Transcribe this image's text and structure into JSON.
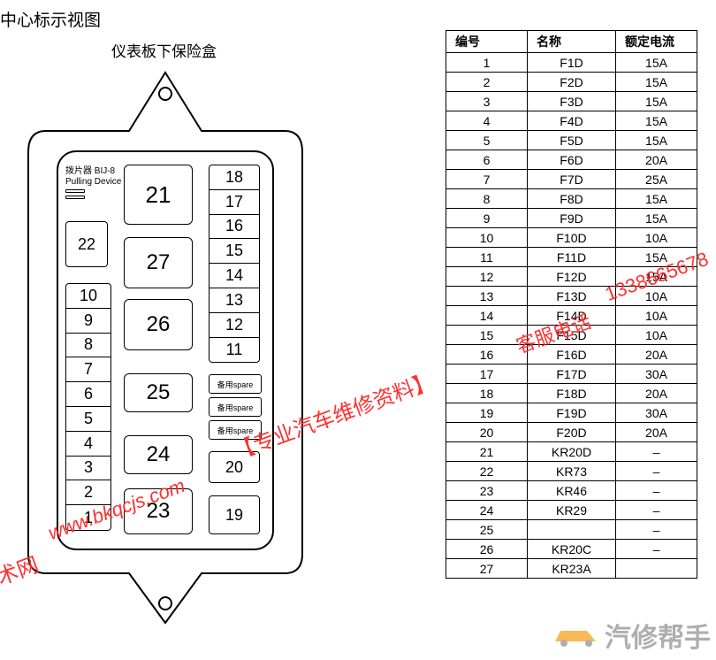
{
  "title": "中心标示视图",
  "subtitle": "仪表板下保险盒",
  "pulling_device": {
    "line1": "拨片器 BIJ-8",
    "line2": "Pulling Device"
  },
  "fusebox": {
    "left_stack_top_to_bottom": [
      "10",
      "9",
      "8",
      "7",
      "6",
      "5",
      "4",
      "3",
      "2",
      "1"
    ],
    "right_stack_top_to_bottom": [
      "18",
      "17",
      "16",
      "15",
      "14",
      "13",
      "12",
      "11"
    ],
    "relays": {
      "r21": "21",
      "r22": "22",
      "r27": "27",
      "r26": "26",
      "r25": "25",
      "r24": "24",
      "r23": "23",
      "r20": "20",
      "r19": "19"
    },
    "spare_label": "备用spare"
  },
  "table": {
    "headers": {
      "id": "编号",
      "name": "名称",
      "current": "额定电流"
    },
    "rows": [
      {
        "id": "1",
        "name": "F1D",
        "cur": "15A"
      },
      {
        "id": "2",
        "name": "F2D",
        "cur": "15A"
      },
      {
        "id": "3",
        "name": "F3D",
        "cur": "15A"
      },
      {
        "id": "4",
        "name": "F4D",
        "cur": "15A"
      },
      {
        "id": "5",
        "name": "F5D",
        "cur": "15A"
      },
      {
        "id": "6",
        "name": "F6D",
        "cur": "20A"
      },
      {
        "id": "7",
        "name": "F7D",
        "cur": "25A"
      },
      {
        "id": "8",
        "name": "F8D",
        "cur": "15A"
      },
      {
        "id": "9",
        "name": "F9D",
        "cur": "15A"
      },
      {
        "id": "10",
        "name": "F10D",
        "cur": "10A"
      },
      {
        "id": "11",
        "name": "F11D",
        "cur": "15A"
      },
      {
        "id": "12",
        "name": "F12D",
        "cur": "15A"
      },
      {
        "id": "13",
        "name": "F13D",
        "cur": "10A"
      },
      {
        "id": "14",
        "name": "F14D",
        "cur": "10A"
      },
      {
        "id": "15",
        "name": "F15D",
        "cur": "10A"
      },
      {
        "id": "16",
        "name": "F16D",
        "cur": "20A"
      },
      {
        "id": "17",
        "name": "F17D",
        "cur": "30A"
      },
      {
        "id": "18",
        "name": "F18D",
        "cur": "20A"
      },
      {
        "id": "19",
        "name": "F19D",
        "cur": "30A"
      },
      {
        "id": "20",
        "name": "F20D",
        "cur": "20A"
      },
      {
        "id": "21",
        "name": "KR20D",
        "cur": "–"
      },
      {
        "id": "22",
        "name": "KR73",
        "cur": "–"
      },
      {
        "id": "23",
        "name": "KR46",
        "cur": "–"
      },
      {
        "id": "24",
        "name": "KR29",
        "cur": "–"
      },
      {
        "id": "25",
        "name": "",
        "cur": "–"
      },
      {
        "id": "26",
        "name": "KR20C",
        "cur": "–"
      },
      {
        "id": "27",
        "name": "KR23A",
        "cur": ""
      }
    ]
  },
  "watermarks": {
    "w1": "技术网",
    "w2": "www.bkqcjs.com",
    "w3": "【专业汽车维修资料】",
    "w4": "客服电话",
    "w5": "1338665678",
    "logo_text": "汽修帮手"
  },
  "colors": {
    "stroke": "#000000",
    "background": "#ffffff",
    "watermark_red": "#ff3030",
    "logo_grey": "#a6a6a6",
    "logo_orange": "#f5a623"
  }
}
